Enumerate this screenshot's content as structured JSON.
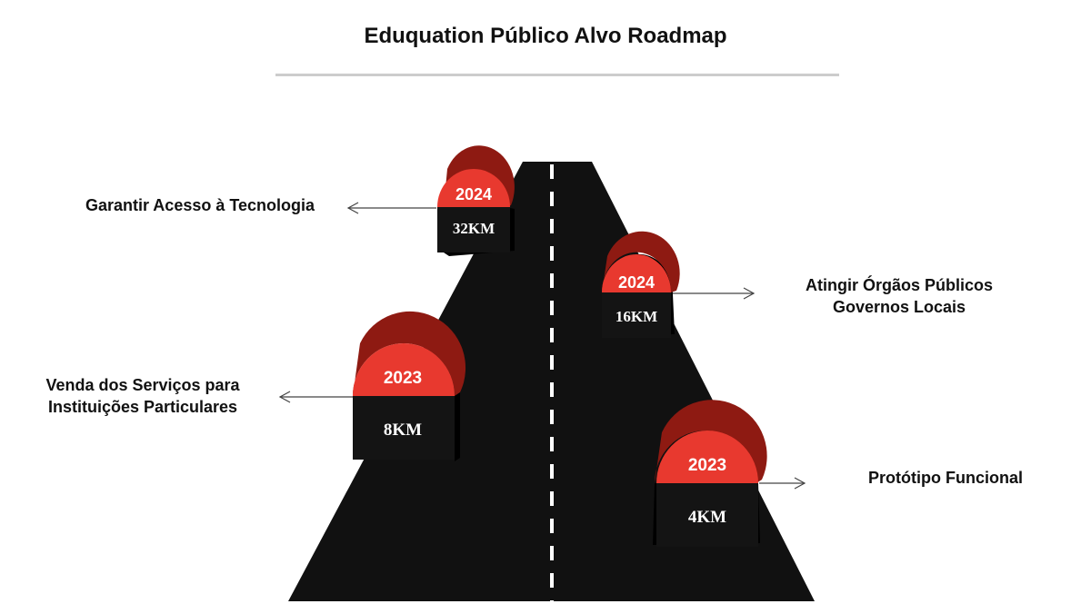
{
  "title": "Eduquation Público Alvo Roadmap",
  "colors": {
    "road": "#111111",
    "marker_top": "#e8392f",
    "marker_body": "#141414",
    "arrow": "#444444"
  },
  "milestones": [
    {
      "year": "2024",
      "distance": "32KM",
      "label": [
        "Garantir Acesso à Tecnologia"
      ]
    },
    {
      "year": "2024",
      "distance": "16KM",
      "label": [
        "Atingir Órgãos Públicos",
        "Governos Locais"
      ]
    },
    {
      "year": "2023",
      "distance": "8KM",
      "label": [
        "Venda dos Serviços para",
        "Instituições Particulares"
      ]
    },
    {
      "year": "2023",
      "distance": "4KM",
      "label": [
        "Protótipo Funcional"
      ]
    }
  ]
}
